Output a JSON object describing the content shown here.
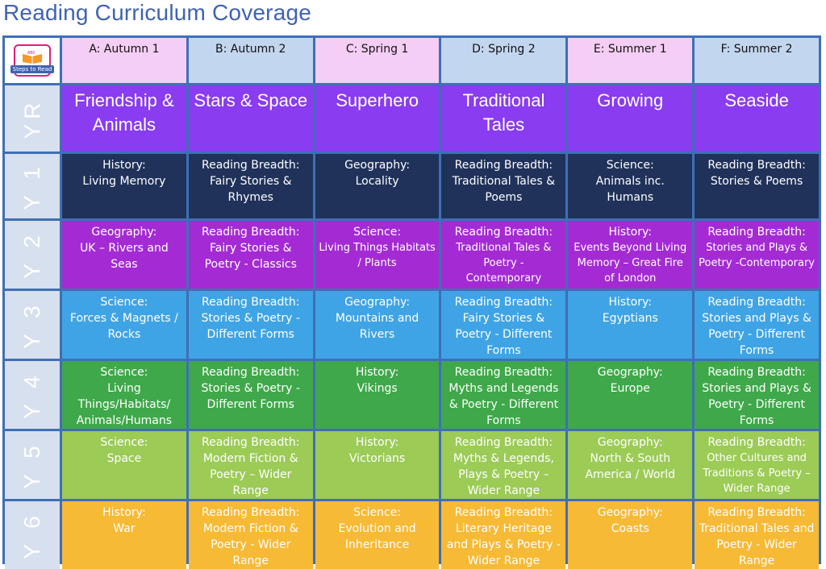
{
  "title": "Reading Curriculum Coverage",
  "logo": {
    "text": "Steps to Read"
  },
  "columns": [
    "A: Autumn 1",
    "B: Autumn 2",
    "C: Spring 1",
    "D: Spring 2",
    "E: Summer 1",
    "F: Summer 2"
  ],
  "years": [
    "YR",
    "Y 1",
    "Y 2",
    "Y 3",
    "Y 4",
    "Y 5",
    "Y 6"
  ],
  "yr_topics": [
    "Friendship & Animals",
    "Stars & Space",
    "Superhero",
    "Traditional Tales",
    "Growing",
    "Seaside"
  ],
  "rows": [
    [
      {
        "subject": "History:",
        "topic": "Living Memory"
      },
      {
        "subject": "Reading Breadth:",
        "topic": "Fairy Stories & Rhymes"
      },
      {
        "subject": "Geography:",
        "topic": "Locality"
      },
      {
        "subject": "Reading Breadth:",
        "topic": "Traditional Tales & Poems"
      },
      {
        "subject": "Science:",
        "topic": "Animals inc. Humans"
      },
      {
        "subject": "Reading Breadth:",
        "topic": "Stories & Poems"
      }
    ],
    [
      {
        "subject": "Geography:",
        "topic": "UK – Rivers and Seas"
      },
      {
        "subject": "Reading Breadth:",
        "topic": "Fairy Stories & Poetry - Classics"
      },
      {
        "subject": "Science:",
        "topic": "Living Things Habitats / Plants"
      },
      {
        "subject": "Reading Breadth:",
        "topic": "Traditional Tales & Poetry - Contemporary"
      },
      {
        "subject": "History:",
        "topic": "Events Beyond Living Memory – Great Fire of London"
      },
      {
        "subject": "Reading Breadth:",
        "topic": "Stories and Plays & Poetry -Contemporary"
      }
    ],
    [
      {
        "subject": "Science:",
        "topic": "Forces & Magnets / Rocks"
      },
      {
        "subject": "Reading Breadth:",
        "topic": "Stories & Poetry - Different Forms"
      },
      {
        "subject": "Geography:",
        "topic": "Mountains and Rivers"
      },
      {
        "subject": "Reading Breadth:",
        "topic": "Fairy Stories & Poetry - Different Forms"
      },
      {
        "subject": "History:",
        "topic": "Egyptians"
      },
      {
        "subject": "Reading Breadth:",
        "topic": "Stories and Plays & Poetry - Different Forms"
      }
    ],
    [
      {
        "subject": "Science:",
        "topic": "Living Things/Habitats/ Animals/Humans"
      },
      {
        "subject": "Reading Breadth:",
        "topic": "Stories & Poetry - Different Forms"
      },
      {
        "subject": "History:",
        "topic": "Vikings"
      },
      {
        "subject": "Reading Breadth:",
        "topic": "Myths and Legends & Poetry - Different Forms"
      },
      {
        "subject": "Geography:",
        "topic": "Europe"
      },
      {
        "subject": "Reading Breadth:",
        "topic": "Stories and Plays & Poetry - Different Forms"
      }
    ],
    [
      {
        "subject": "Science:",
        "topic": "Space"
      },
      {
        "subject": "Reading Breadth:",
        "topic": "Modern Fiction & Poetry – Wider Range"
      },
      {
        "subject": "History:",
        "topic": "Victorians"
      },
      {
        "subject": "Reading Breadth:",
        "topic": "Myths & Legends, Plays & Poetry – Wider Range"
      },
      {
        "subject": "Geography:",
        "topic": "North & South America / World"
      },
      {
        "subject": "Reading Breadth:",
        "topic": "Other Cultures and Traditions & Poetry – Wider Range"
      }
    ],
    [
      {
        "subject": "History:",
        "topic": "War"
      },
      {
        "subject": "Reading Breadth:",
        "topic": "Modern Fiction & Poetry - Wider Range"
      },
      {
        "subject": "Science:",
        "topic": "Evolution and Inheritance"
      },
      {
        "subject": "Reading Breadth:",
        "topic": "Literary Heritage and Plays & Poetry - Wider Range"
      },
      {
        "subject": "Geography:",
        "topic": "Coasts"
      },
      {
        "subject": "Reading Breadth:",
        "topic": "Traditional Tales and Poetry - Wider Range"
      }
    ]
  ],
  "colors": {
    "YR": "#8a3cf0",
    "Y1": "#20325a",
    "Y2": "#a42bd4",
    "Y3": "#3ea4e6",
    "Y4": "#3fa84a",
    "Y5": "#9ccb56",
    "Y6": "#f6ba35",
    "header_pink": "#f4cef4",
    "header_blue": "#c3d6ef",
    "grid": "#3f6fb6",
    "title": "#3f63b0"
  }
}
